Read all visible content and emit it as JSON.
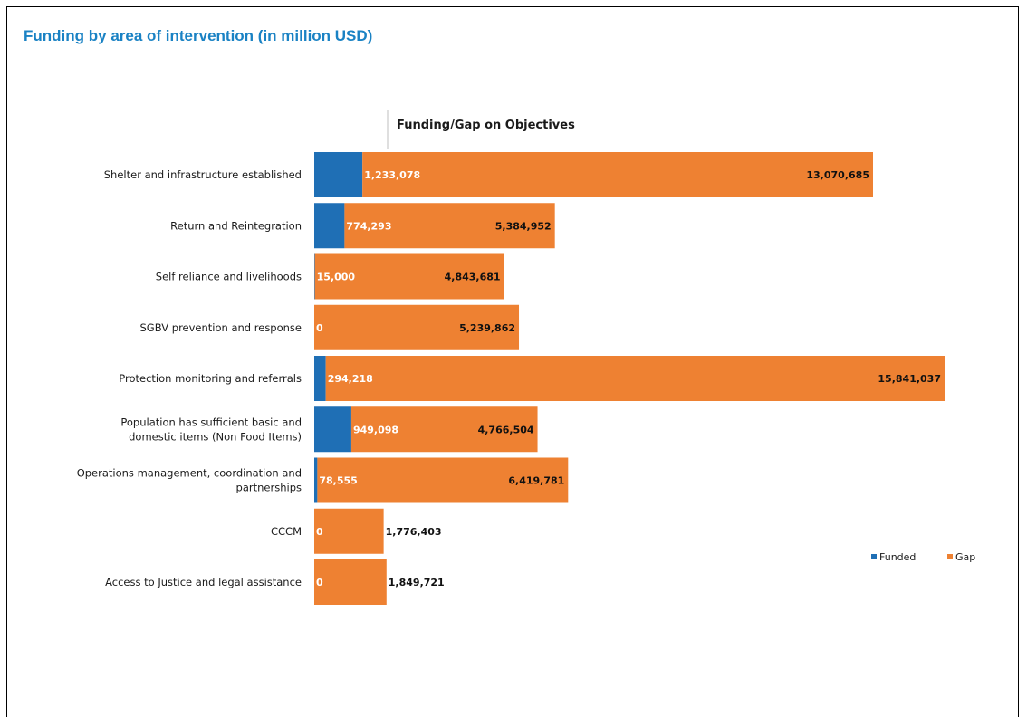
{
  "page": {
    "title": "Funding by area of intervention (in million USD)"
  },
  "chart_data": {
    "type": "bar",
    "orientation": "horizontal",
    "stacked": true,
    "title": "Funding/Gap on Objectives",
    "categories": [
      [
        "Shelter and infrastructure established"
      ],
      [
        "Return and Reintegration"
      ],
      [
        "Self reliance and livelihoods"
      ],
      [
        "SGBV prevention and response"
      ],
      [
        "Protection monitoring and referrals"
      ],
      [
        "Population has sufficient basic and",
        "domestic items (Non Food Items)"
      ],
      [
        "Operations management, coordination and",
        "partnerships"
      ],
      [
        "CCCM"
      ],
      [
        "Access to Justice and legal assistance"
      ]
    ],
    "series": [
      {
        "name": "Funded",
        "color": "#1f6fb5",
        "values": [
          1233078,
          774293,
          15000,
          0,
          294218,
          949098,
          78555,
          0,
          0
        ],
        "labels": [
          "1,233,078",
          "774,293",
          "15,000",
          "0",
          "294,218",
          "949,098",
          "78,555",
          "0",
          "0"
        ]
      },
      {
        "name": "Gap",
        "color": "#ee8132",
        "values": [
          13070685,
          5384952,
          4843681,
          5239862,
          15841037,
          4766504,
          6419781,
          1776403,
          1849721
        ],
        "labels": [
          "13,070,685",
          "5,384,952",
          "4,843,681",
          "5,239,862",
          "15,841,037",
          "4,766,504",
          "6,419,781",
          "1,776,403",
          "1,849,721"
        ]
      }
    ],
    "legend": {
      "placement": "right",
      "entries": [
        "Funded",
        "Gap"
      ]
    },
    "grid": false
  }
}
